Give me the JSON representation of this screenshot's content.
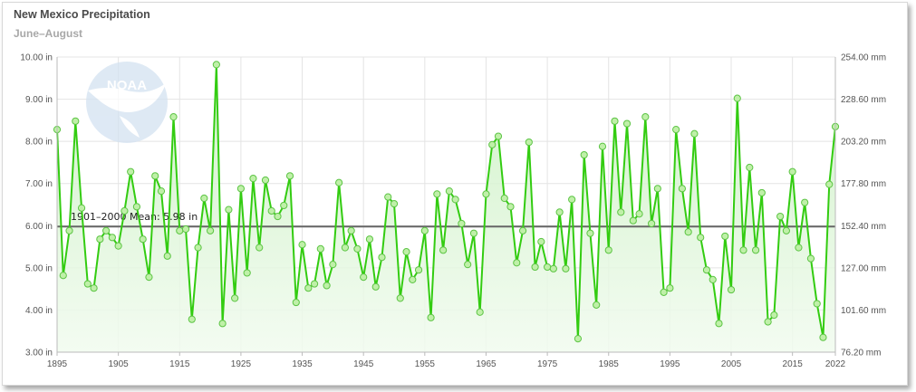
{
  "header": {
    "title": "New Mexico Precipitation",
    "subtitle": "June–August"
  },
  "colors": {
    "line": "#33cc11",
    "fill_top": "#c9f0c0",
    "fill_bottom": "#f1fbef",
    "mean_line": "#666666",
    "grid": "#e4e4e4"
  },
  "logo": {
    "text": "NOAA"
  },
  "chart_data": {
    "type": "line",
    "title": "New Mexico Precipitation",
    "subtitle": "June–August",
    "x_ticks": [
      "1895",
      "1905",
      "1915",
      "1925",
      "1935",
      "1945",
      "1955",
      "1965",
      "1975",
      "1985",
      "1995",
      "2005",
      "2015",
      "2022"
    ],
    "y_ticks_left": [
      "10.00 in",
      "9.00 in",
      "8.00 in",
      "7.00 in",
      "6.00 in",
      "5.00 in",
      "4.00 in",
      "3.00 in"
    ],
    "y_ticks_right": [
      "254.00 mm",
      "228.60 mm",
      "203.20 mm",
      "177.80 mm",
      "152.40 mm",
      "127.00 mm",
      "101.60 mm",
      "76.20 mm"
    ],
    "ylim": [
      3,
      10
    ],
    "xlim": [
      1895,
      2022
    ],
    "grid": true,
    "mean_value": 5.98,
    "mean_label": "1901–2000 Mean: 5.98 in",
    "series": [
      {
        "x_start": 1895,
        "values": [
          8.28,
          4.82,
          5.88,
          8.48,
          6.42,
          4.62,
          4.52,
          5.68,
          5.88,
          5.72,
          5.52,
          6.35,
          7.28,
          6.45,
          5.68,
          4.78,
          7.18,
          6.82,
          5.28,
          8.58,
          5.88,
          5.92,
          3.78,
          5.48,
          6.65,
          5.88,
          9.82,
          3.68,
          6.38,
          4.28,
          6.88,
          4.88,
          7.12,
          5.48,
          7.08,
          6.35,
          6.22,
          6.48,
          7.18,
          4.18,
          5.55,
          4.52,
          4.62,
          5.45,
          4.58,
          5.08,
          7.02,
          5.48,
          5.88,
          5.45,
          4.78,
          5.68,
          4.55,
          5.25,
          6.68,
          6.52,
          4.28,
          5.38,
          4.72,
          4.95,
          5.88,
          3.82,
          6.75,
          5.42,
          6.82,
          6.62,
          6.05,
          5.08,
          5.82,
          3.95,
          6.75,
          7.92,
          8.12,
          6.65,
          6.45,
          5.12,
          5.88,
          7.98,
          5.02,
          5.62,
          5.02,
          4.98,
          6.32,
          4.98,
          6.62,
          3.32,
          7.68,
          5.82,
          4.12,
          7.88,
          5.42,
          8.48,
          6.32,
          8.42,
          6.12,
          6.28,
          8.58,
          6.05,
          6.88,
          4.42,
          4.52,
          8.28,
          6.88,
          5.85,
          8.18,
          5.72,
          4.95,
          4.72,
          3.68,
          5.75,
          4.48,
          9.02,
          5.42,
          7.38,
          5.42,
          6.78,
          3.72,
          3.88,
          6.22,
          5.88,
          7.28,
          5.48,
          6.55,
          5.22,
          4.15,
          3.35,
          6.98,
          8.35
        ]
      }
    ]
  }
}
